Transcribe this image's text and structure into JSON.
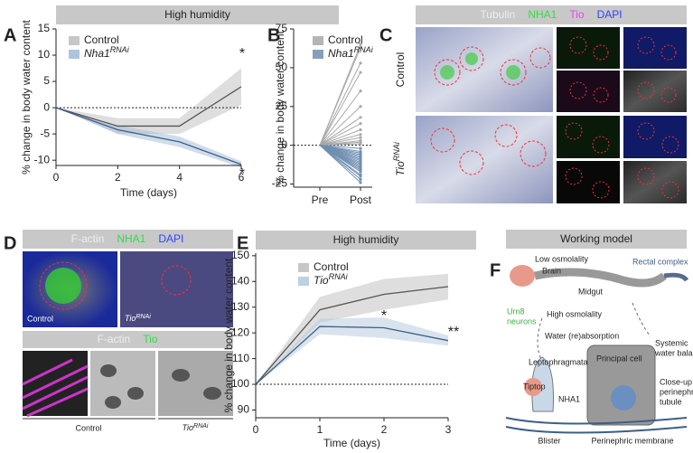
{
  "chart_data": [
    {
      "type": "line",
      "label": "A",
      "header": "High humidity",
      "ylabel": "% change in body water content",
      "xlabel": "Time (days)",
      "x": [
        0,
        2,
        4,
        6
      ],
      "xlim": [
        0,
        6
      ],
      "xticks": [
        0,
        2,
        4,
        6
      ],
      "ylim": [
        -11,
        15
      ],
      "yticks": [
        -10,
        -5,
        0,
        5,
        10,
        15
      ],
      "hline": 0,
      "series": [
        {
          "name": "Control",
          "color": "#555555",
          "band": "#bdbdbd",
          "values": [
            0,
            -3.5,
            -3.5,
            4
          ],
          "error": [
            0,
            1.5,
            1.5,
            3.5
          ]
        },
        {
          "name": "Nha1",
          "name_sup": "RNAi",
          "color": "#3c5f87",
          "band": "#9fbad6",
          "values": [
            0,
            -4.2,
            -6.5,
            -10.8
          ],
          "error": [
            0,
            0.8,
            1,
            0.6
          ]
        }
      ],
      "annotations": [
        "*",
        "*"
      ]
    },
    {
      "type": "slope",
      "label": "B",
      "ylabel": "% change in body water content",
      "categories": [
        "Pre",
        "Post"
      ],
      "ylim": [
        -27,
        75
      ],
      "yticks": [
        -25,
        0,
        25,
        50,
        75
      ],
      "hline": 0,
      "series": [
        {
          "name": "Control",
          "color": "#a8a8a8",
          "pre": [
            0,
            0,
            0,
            0,
            0,
            0,
            0,
            0,
            0,
            0,
            0,
            0,
            0,
            0
          ],
          "post": [
            65,
            63,
            53,
            47,
            35,
            25,
            18,
            14,
            10,
            7,
            5,
            3,
            2,
            1
          ]
        },
        {
          "name": "Nha1",
          "name_sup": "RNAi",
          "color": "#6f8fb0",
          "pre": [
            0,
            0,
            0,
            0,
            0,
            0,
            0,
            0,
            0,
            0,
            0,
            0,
            0,
            0,
            0,
            0,
            0,
            0,
            0
          ],
          "post": [
            -2,
            -4,
            -5,
            -6,
            -7,
            -8,
            -9,
            -10,
            -11,
            -12,
            -13,
            -14,
            -15,
            -16,
            -17,
            -19,
            -20,
            -22,
            -24
          ]
        }
      ]
    },
    {
      "type": "line",
      "label": "E",
      "header": "High humidity",
      "ylabel": "% change in body water content",
      "xlabel": "Time (days)",
      "x": [
        0,
        1,
        2,
        3
      ],
      "xlim": [
        0,
        3
      ],
      "xticks": [
        0,
        1,
        2,
        3
      ],
      "ylim": [
        87,
        151
      ],
      "yticks": [
        90,
        100,
        110,
        120,
        130,
        140,
        150
      ],
      "hline": 100,
      "series": [
        {
          "name": "Control",
          "color": "#555555",
          "band": "#bdbdbd",
          "values": [
            100,
            129,
            135,
            138
          ],
          "error": [
            0,
            5,
            6,
            5
          ]
        },
        {
          "name": "Tio",
          "name_sup": "RNAi",
          "color": "#3c5f87",
          "band": "#b3c8de",
          "values": [
            100,
            122.5,
            122,
            117
          ],
          "error": [
            0,
            3,
            4,
            2
          ]
        }
      ],
      "annotations": [
        "*",
        "**"
      ]
    }
  ],
  "panels": {
    "C": {
      "label": "C",
      "header": [
        {
          "text": "Tubulin",
          "color": "#eeeeee"
        },
        {
          "text": "NHA1",
          "color": "#33dd44"
        },
        {
          "text": "Tio",
          "color": "#ee44ee"
        },
        {
          "text": "DAPI",
          "color": "#3344ff"
        }
      ],
      "row1": "Control",
      "row2": "Tio",
      "row2_sup": "RNAi"
    },
    "D": {
      "label": "D",
      "header": [
        {
          "text": "F-actin",
          "color": "#eeeeee"
        },
        {
          "text": "NHA1",
          "color": "#33dd44"
        },
        {
          "text": "DAPI",
          "color": "#3344ff"
        }
      ],
      "header2": [
        {
          "text": "F-actin",
          "color": "#eeeeee"
        },
        {
          "text": "Tio",
          "color": "#33dd44"
        }
      ],
      "img1": "Control",
      "img2": "Tio",
      "img2_sup": "RNAi",
      "cap1": "Control",
      "cap2": "Tio",
      "cap2_sup": "RNAi"
    },
    "F": {
      "label": "F",
      "header": "Working model",
      "labels": [
        "Low osmolality",
        "Brain",
        "Rectal complex",
        "Midgut",
        "Urn8",
        "neurons",
        "High osmolality",
        "Systemic",
        "water balance",
        "Water (re)absorption",
        "Leptophragmata",
        "Tiptop",
        "NHA1",
        "Principal cell",
        "Close-up of",
        "perinephric",
        "tubule",
        "Blister",
        "Perinephric membrane"
      ]
    }
  }
}
